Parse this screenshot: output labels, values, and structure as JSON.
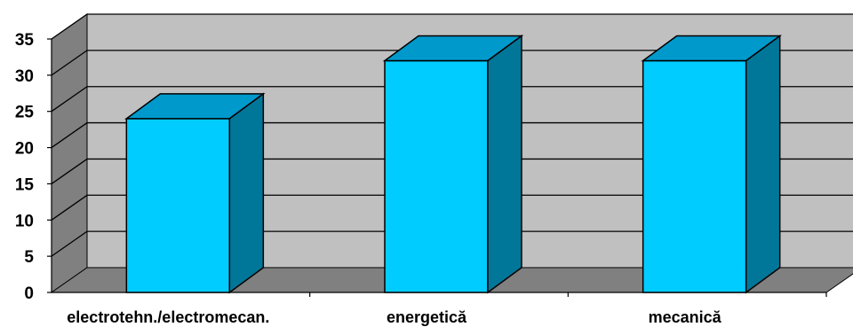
{
  "chart_data": {
    "type": "bar",
    "categories": [
      "electrotehn./electromecan.",
      "energetică",
      "mecanică"
    ],
    "values": [
      24,
      32,
      32
    ],
    "title": "",
    "xlabel": "",
    "ylabel": "",
    "ylim": [
      0,
      35
    ],
    "yticks": [
      "0",
      "5",
      "10",
      "15",
      "20",
      "25",
      "30",
      "35"
    ],
    "grid": true,
    "legend": "none",
    "style": "3d",
    "colors": {
      "bar_front": "#00ccff",
      "bar_top": "#0099cc",
      "bar_side": "#007799",
      "wall": "#c0c0c0",
      "floor": "#808080",
      "side_wall": "#808080"
    }
  }
}
